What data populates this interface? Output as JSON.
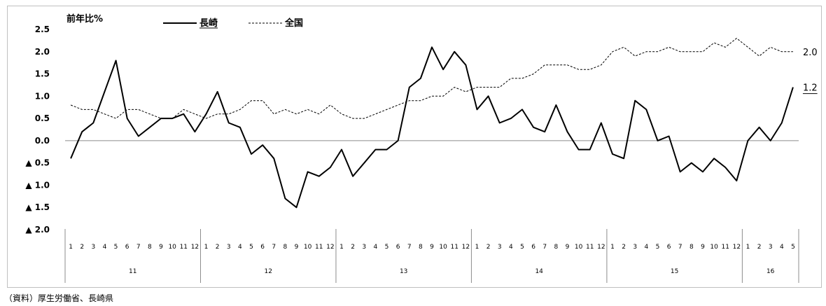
{
  "chart_data": {
    "type": "line",
    "ylabel": "前年比%",
    "ylim": [
      -2.0,
      2.5
    ],
    "yticks": [
      {
        "value": 2.5,
        "label": "2.5"
      },
      {
        "value": 2.0,
        "label": "2.0"
      },
      {
        "value": 1.5,
        "label": "1.5"
      },
      {
        "value": 1.0,
        "label": "1.0"
      },
      {
        "value": 0.5,
        "label": "0.5"
      },
      {
        "value": 0.0,
        "label": "0.0"
      },
      {
        "value": -0.5,
        "label": "▲ 0.5"
      },
      {
        "value": -1.0,
        "label": "▲ 1.0"
      },
      {
        "value": -1.5,
        "label": "▲ 1.5"
      },
      {
        "value": -2.0,
        "label": "▲ 2.0"
      }
    ],
    "years": [
      {
        "label": "11",
        "months": 12
      },
      {
        "label": "12",
        "months": 12
      },
      {
        "label": "13",
        "months": 12
      },
      {
        "label": "14",
        "months": 12
      },
      {
        "label": "15",
        "months": 12
      },
      {
        "label": "16",
        "months": 5
      }
    ],
    "legend_position": "top",
    "series": [
      {
        "name": "長崎",
        "style": "solid",
        "color": "#000000",
        "end_label": "1.2",
        "values": [
          -0.4,
          0.2,
          0.4,
          1.1,
          1.8,
          0.5,
          0.1,
          0.3,
          0.5,
          0.5,
          0.6,
          0.2,
          0.6,
          1.1,
          0.4,
          0.3,
          -0.3,
          -0.1,
          -0.4,
          -1.3,
          -1.5,
          -0.7,
          -0.8,
          -0.6,
          -0.2,
          -0.8,
          -0.5,
          -0.2,
          -0.2,
          0.0,
          1.2,
          1.4,
          2.1,
          1.6,
          2.0,
          1.7,
          0.7,
          1.0,
          0.4,
          0.5,
          0.7,
          0.3,
          0.2,
          0.8,
          0.2,
          -0.2,
          -0.2,
          0.4,
          -0.3,
          -0.4,
          0.9,
          0.7,
          0.0,
          0.1,
          -0.7,
          -0.5,
          -0.7,
          -0.4,
          -0.6,
          -0.9,
          0.0,
          0.3,
          0.0,
          0.4,
          1.2
        ]
      },
      {
        "name": "全国",
        "style": "dashed",
        "color": "#000000",
        "end_label": "2.0",
        "values": [
          0.8,
          0.7,
          0.7,
          0.6,
          0.5,
          0.7,
          0.7,
          0.6,
          0.5,
          0.5,
          0.7,
          0.6,
          0.5,
          0.6,
          0.6,
          0.7,
          0.9,
          0.9,
          0.6,
          0.7,
          0.6,
          0.7,
          0.6,
          0.8,
          0.6,
          0.5,
          0.5,
          0.6,
          0.7,
          0.8,
          0.9,
          0.9,
          1.0,
          1.0,
          1.2,
          1.1,
          1.2,
          1.2,
          1.2,
          1.4,
          1.4,
          1.5,
          1.7,
          1.7,
          1.7,
          1.6,
          1.6,
          1.7,
          2.0,
          2.1,
          1.9,
          2.0,
          2.0,
          2.1,
          2.0,
          2.0,
          2.0,
          2.2,
          2.1,
          2.3,
          2.1,
          1.9,
          2.1,
          2.0,
          2.0
        ]
      }
    ]
  },
  "source": "（資料）厚生労働省、長崎県"
}
